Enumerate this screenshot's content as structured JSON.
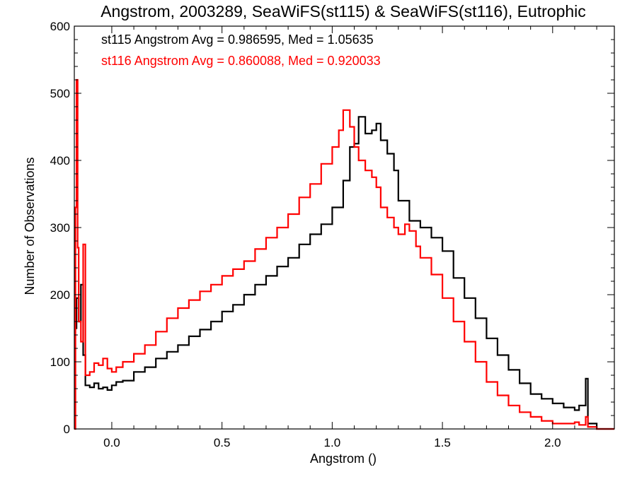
{
  "chart_data": {
    "type": "line",
    "title": "Angstrom, 2003289, SeaWiFS(st115) & SeaWiFS(st116), Eutrophic",
    "xlabel": "Angstrom ()",
    "ylabel": "Number of Observations",
    "xlim": [
      -0.17,
      2.28
    ],
    "ylim": [
      0,
      600
    ],
    "x_ticks": [
      0.0,
      0.5,
      1.0,
      1.5,
      2.0
    ],
    "x_tick_labels": [
      "0.0",
      "0.5",
      "1.0",
      "1.5",
      "2.0"
    ],
    "y_ticks": [
      0,
      100,
      200,
      300,
      400,
      500,
      600
    ],
    "y_tick_labels": [
      "0",
      "100",
      "200",
      "300",
      "400",
      "500",
      "600"
    ],
    "grid": false,
    "legend_position": "top-left",
    "series": [
      {
        "id": "st115",
        "legend_text": "st115 Angstrom Avg = 0.986595, Med = 1.05635",
        "color": "#000000",
        "points": [
          [
            -0.17,
            150
          ],
          [
            -0.16,
            195
          ],
          [
            -0.15,
            160
          ],
          [
            -0.14,
            215
          ],
          [
            -0.13,
            110
          ],
          [
            -0.12,
            65
          ],
          [
            -0.1,
            62
          ],
          [
            -0.08,
            68
          ],
          [
            -0.06,
            60
          ],
          [
            -0.04,
            62
          ],
          [
            -0.02,
            58
          ],
          [
            0.0,
            65
          ],
          [
            0.02,
            70
          ],
          [
            0.05,
            72
          ],
          [
            0.1,
            85
          ],
          [
            0.15,
            92
          ],
          [
            0.2,
            105
          ],
          [
            0.25,
            115
          ],
          [
            0.3,
            125
          ],
          [
            0.35,
            138
          ],
          [
            0.4,
            148
          ],
          [
            0.45,
            160
          ],
          [
            0.5,
            175
          ],
          [
            0.55,
            185
          ],
          [
            0.6,
            200
          ],
          [
            0.65,
            215
          ],
          [
            0.7,
            228
          ],
          [
            0.75,
            242
          ],
          [
            0.8,
            255
          ],
          [
            0.85,
            275
          ],
          [
            0.9,
            290
          ],
          [
            0.95,
            305
          ],
          [
            1.0,
            330
          ],
          [
            1.05,
            370
          ],
          [
            1.08,
            420
          ],
          [
            1.1,
            425
          ],
          [
            1.12,
            465
          ],
          [
            1.15,
            440
          ],
          [
            1.18,
            445
          ],
          [
            1.2,
            455
          ],
          [
            1.22,
            430
          ],
          [
            1.25,
            410
          ],
          [
            1.28,
            385
          ],
          [
            1.3,
            340
          ],
          [
            1.35,
            310
          ],
          [
            1.4,
            300
          ],
          [
            1.45,
            285
          ],
          [
            1.5,
            265
          ],
          [
            1.55,
            225
          ],
          [
            1.6,
            195
          ],
          [
            1.65,
            165
          ],
          [
            1.7,
            135
          ],
          [
            1.75,
            110
          ],
          [
            1.8,
            88
          ],
          [
            1.85,
            68
          ],
          [
            1.9,
            52
          ],
          [
            1.95,
            45
          ],
          [
            2.0,
            38
          ],
          [
            2.05,
            32
          ],
          [
            2.1,
            28
          ],
          [
            2.12,
            35
          ],
          [
            2.15,
            75
          ],
          [
            2.16,
            8
          ],
          [
            2.2,
            0
          ],
          [
            2.28,
            0
          ]
        ]
      },
      {
        "id": "st116",
        "legend_text": "st116 Angstrom Avg = 0.860088, Med = 0.920033",
        "color": "#ff0000",
        "points": [
          [
            -0.17,
            0
          ],
          [
            -0.165,
            330
          ],
          [
            -0.16,
            520
          ],
          [
            -0.155,
            270
          ],
          [
            -0.15,
            160
          ],
          [
            -0.14,
            130
          ],
          [
            -0.13,
            275
          ],
          [
            -0.12,
            80
          ],
          [
            -0.1,
            85
          ],
          [
            -0.08,
            98
          ],
          [
            -0.06,
            95
          ],
          [
            -0.04,
            105
          ],
          [
            -0.02,
            90
          ],
          [
            0.0,
            85
          ],
          [
            0.02,
            92
          ],
          [
            0.05,
            100
          ],
          [
            0.1,
            112
          ],
          [
            0.15,
            125
          ],
          [
            0.2,
            145
          ],
          [
            0.25,
            165
          ],
          [
            0.3,
            180
          ],
          [
            0.35,
            192
          ],
          [
            0.4,
            205
          ],
          [
            0.45,
            215
          ],
          [
            0.5,
            228
          ],
          [
            0.55,
            238
          ],
          [
            0.6,
            250
          ],
          [
            0.65,
            268
          ],
          [
            0.7,
            285
          ],
          [
            0.75,
            300
          ],
          [
            0.8,
            320
          ],
          [
            0.85,
            345
          ],
          [
            0.9,
            365
          ],
          [
            0.95,
            395
          ],
          [
            1.0,
            420
          ],
          [
            1.03,
            445
          ],
          [
            1.05,
            475
          ],
          [
            1.08,
            450
          ],
          [
            1.1,
            420
          ],
          [
            1.12,
            400
          ],
          [
            1.15,
            385
          ],
          [
            1.18,
            375
          ],
          [
            1.2,
            360
          ],
          [
            1.22,
            330
          ],
          [
            1.25,
            315
          ],
          [
            1.28,
            300
          ],
          [
            1.3,
            290
          ],
          [
            1.33,
            305
          ],
          [
            1.35,
            295
          ],
          [
            1.38,
            272
          ],
          [
            1.4,
            255
          ],
          [
            1.45,
            230
          ],
          [
            1.5,
            195
          ],
          [
            1.55,
            160
          ],
          [
            1.6,
            130
          ],
          [
            1.65,
            100
          ],
          [
            1.7,
            70
          ],
          [
            1.75,
            50
          ],
          [
            1.8,
            35
          ],
          [
            1.85,
            25
          ],
          [
            1.9,
            18
          ],
          [
            1.95,
            12
          ],
          [
            2.0,
            8
          ],
          [
            2.05,
            8
          ],
          [
            2.1,
            10
          ],
          [
            2.12,
            6
          ],
          [
            2.15,
            18
          ],
          [
            2.16,
            3
          ],
          [
            2.2,
            0
          ],
          [
            2.28,
            0
          ]
        ]
      }
    ]
  }
}
